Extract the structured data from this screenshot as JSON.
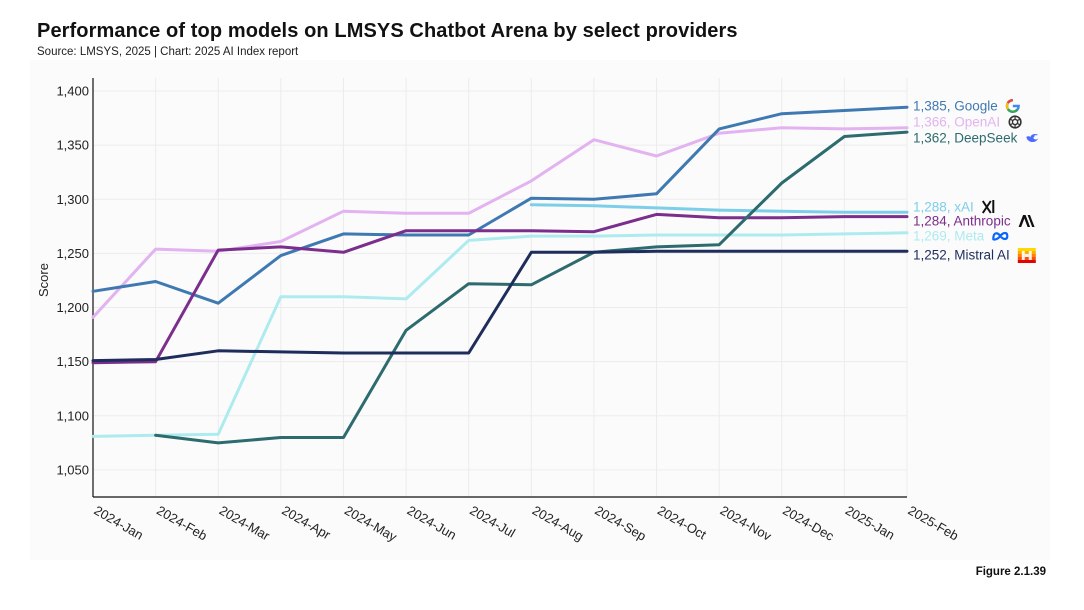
{
  "header": {
    "title": "Performance of top models on LMSYS Chatbot Arena by select providers",
    "source": "Source: LMSYS, 2025 | Chart: 2025 AI Index report"
  },
  "footer": {
    "figure": "Figure 2.1.39"
  },
  "chart_data": {
    "type": "line",
    "title": "Performance of top models on LMSYS Chatbot Arena by select providers",
    "xlabel": "",
    "ylabel": "Score",
    "ylim": [
      1025,
      1412
    ],
    "yticks": [
      1050,
      1100,
      1150,
      1200,
      1250,
      1300,
      1350,
      1400
    ],
    "ytick_labels": [
      "1,050",
      "1,100",
      "1,150",
      "1,200",
      "1,250",
      "1,300",
      "1,350",
      "1,400"
    ],
    "categories": [
      "2024-Jan",
      "2024-Feb",
      "2024-Mar",
      "2024-Apr",
      "2024-May",
      "2024-Jun",
      "2024-Jul",
      "2024-Aug",
      "2024-Sep",
      "2024-Oct",
      "2024-Nov",
      "2024-Dec",
      "2025-Jan",
      "2025-Feb"
    ],
    "grid": true,
    "legend": "right-end labels",
    "series": [
      {
        "name": "OpenAI",
        "label": "1,366, OpenAI",
        "icon": "openai-icon",
        "color": "#e2b3f0",
        "values": [
          1191,
          1254,
          1252,
          1261,
          1289,
          1287,
          1287,
          1317,
          1355,
          1340,
          1361,
          1366,
          1365,
          1366
        ]
      },
      {
        "name": "Google",
        "label": "1,385, Google",
        "icon": "google-icon",
        "color": "#3f79b2",
        "values": [
          1215,
          1224,
          1204,
          1248,
          1268,
          1267,
          1267,
          1301,
          1300,
          1305,
          1365,
          1379,
          1382,
          1385
        ]
      },
      {
        "name": "xAI",
        "label": "1,288, xAI",
        "icon": "xai-icon",
        "color": "#7dcfe9",
        "values": [
          null,
          null,
          null,
          null,
          null,
          null,
          null,
          1295,
          1294,
          1292,
          1290,
          1289,
          1288,
          1288
        ]
      },
      {
        "name": "Anthropic",
        "label": "1,284, Anthropic",
        "icon": "anthropic-icon",
        "color": "#7b2e8c",
        "values": [
          1149,
          1150,
          1253,
          1256,
          1251,
          1271,
          1271,
          1271,
          1270,
          1286,
          1283,
          1283,
          1284,
          1284
        ]
      },
      {
        "name": "Meta",
        "label": "1,269, Meta",
        "icon": "meta-icon",
        "color": "#aeebef",
        "values": [
          1081,
          1082,
          1083,
          1210,
          1210,
          1208,
          1262,
          1266,
          1266,
          1267,
          1267,
          1267,
          1268,
          1269
        ]
      },
      {
        "name": "DeepSeek",
        "label": "1,362, DeepSeek",
        "icon": "deepseek-icon",
        "color": "#2d6b6e",
        "values": [
          null,
          1082,
          1075,
          1080,
          1080,
          1179,
          1222,
          1221,
          1251,
          1256,
          1258,
          1315,
          1358,
          1362
        ]
      },
      {
        "name": "Mistral AI",
        "label": "1,252, Mistral AI",
        "icon": "mistral-icon",
        "color": "#1f2d5c",
        "values": [
          1151,
          1152,
          1160,
          1159,
          1158,
          1158,
          1158,
          1251,
          1251,
          1252,
          1252,
          1252,
          1252,
          1252
        ]
      }
    ]
  }
}
